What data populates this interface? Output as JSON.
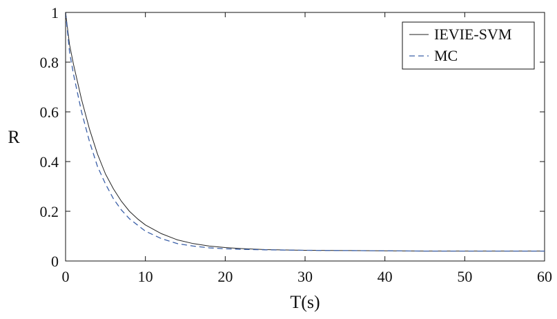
{
  "chart_data": {
    "type": "line",
    "title": "",
    "xlabel": "T(s)",
    "ylabel": "R",
    "xlim": [
      0,
      60
    ],
    "ylim": [
      0,
      1
    ],
    "xticks": [
      0,
      10,
      20,
      30,
      40,
      50,
      60
    ],
    "yticks": [
      0,
      0.2,
      0.4,
      0.6,
      0.8,
      1
    ],
    "xtick_labels": [
      "0",
      "10",
      "20",
      "30",
      "40",
      "50",
      "60"
    ],
    "ytick_labels": [
      "0",
      "0.2",
      "0.4",
      "0.6",
      "0.8",
      "1"
    ],
    "grid": false,
    "legend_position": "top-right",
    "x": [
      0,
      0.5,
      1,
      2,
      3,
      4,
      5,
      6,
      7,
      8,
      9,
      10,
      12,
      14,
      16,
      18,
      20,
      22,
      25,
      30,
      35,
      40,
      45,
      50,
      55,
      60
    ],
    "series": [
      {
        "name": "IEVIE-SVM",
        "color": "#222222",
        "style": "solid",
        "values": [
          1.0,
          0.87,
          0.79,
          0.65,
          0.53,
          0.43,
          0.35,
          0.29,
          0.24,
          0.2,
          0.17,
          0.145,
          0.11,
          0.085,
          0.07,
          0.06,
          0.054,
          0.05,
          0.046,
          0.043,
          0.042,
          0.041,
          0.04,
          0.04,
          0.04,
          0.04
        ]
      },
      {
        "name": "MC",
        "color": "#3a5fa8",
        "style": "dashed",
        "values": [
          1.0,
          0.84,
          0.75,
          0.6,
          0.48,
          0.38,
          0.31,
          0.25,
          0.205,
          0.17,
          0.145,
          0.12,
          0.09,
          0.07,
          0.06,
          0.053,
          0.049,
          0.047,
          0.045,
          0.043,
          0.042,
          0.041,
          0.04,
          0.04,
          0.04,
          0.04
        ]
      }
    ]
  }
}
